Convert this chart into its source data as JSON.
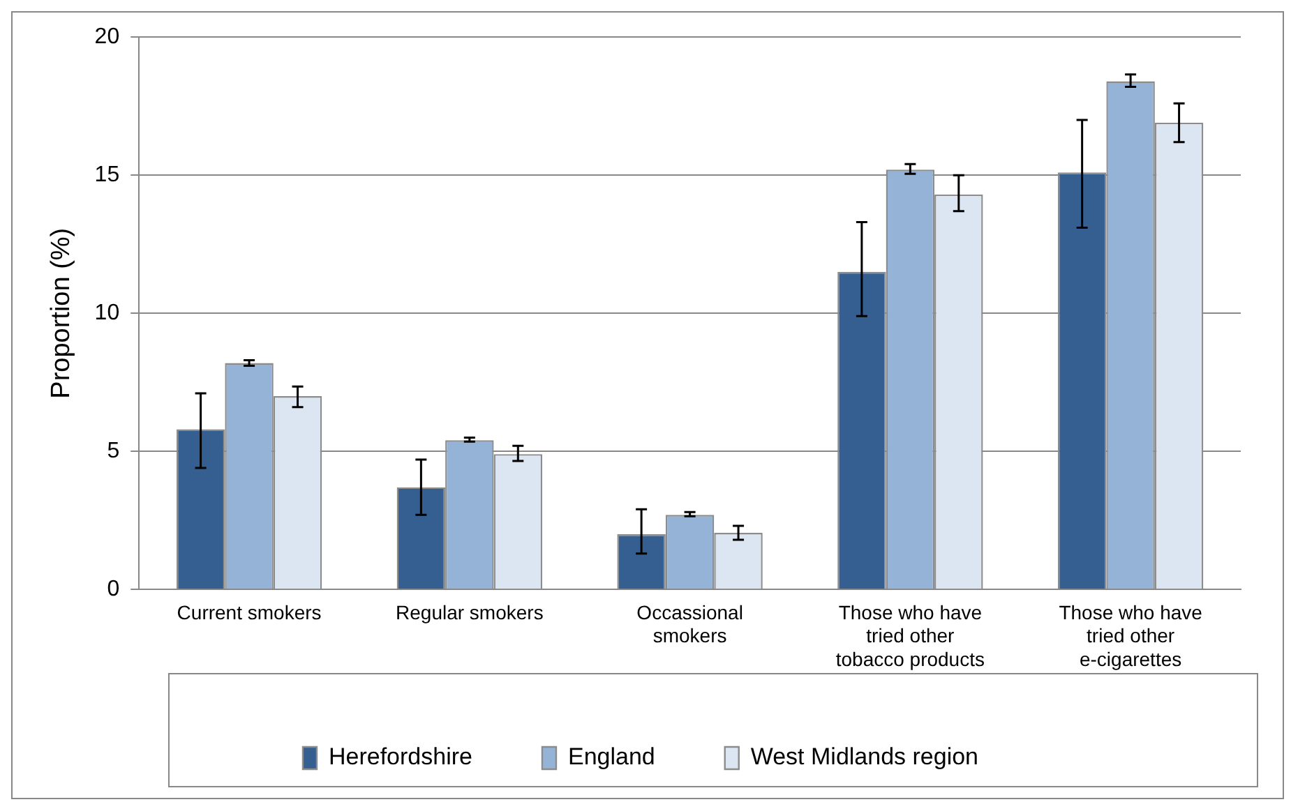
{
  "chart_data": {
    "type": "bar",
    "ylabel": "Proportion (%)",
    "categories": [
      "Current smokers",
      "Regular smokers",
      "Occassional smokers",
      "Those who have tried other tobacco products",
      "Those who have tried other e-cigarettes"
    ],
    "series": [
      {
        "name": "Herefordshire",
        "color": "#355f91",
        "values": [
          5.8,
          3.7,
          2.0,
          11.5,
          15.1
        ],
        "errors": [
          [
            4.4,
            7.1
          ],
          [
            2.7,
            4.7
          ],
          [
            1.3,
            2.9
          ],
          [
            9.9,
            13.3
          ],
          [
            13.1,
            17.0
          ]
        ]
      },
      {
        "name": "England",
        "color": "#95b3d7",
        "values": [
          8.2,
          5.4,
          2.7,
          15.2,
          18.4
        ],
        "errors": [
          [
            8.1,
            8.3
          ],
          [
            5.35,
            5.5
          ],
          [
            2.65,
            2.8
          ],
          [
            15.05,
            15.4
          ],
          [
            18.2,
            18.65
          ]
        ]
      },
      {
        "name": "West Midlands region",
        "color": "#dce6f2",
        "values": [
          7.0,
          4.9,
          2.05,
          14.3,
          16.9
        ],
        "errors": [
          [
            6.6,
            7.35
          ],
          [
            4.65,
            5.2
          ],
          [
            1.8,
            2.3
          ],
          [
            13.7,
            15.0
          ],
          [
            16.2,
            17.6
          ]
        ]
      }
    ],
    "ylim": [
      0,
      20
    ],
    "yticks": [
      0,
      5,
      10,
      15,
      20
    ],
    "grid": "y",
    "legend": "bottom"
  }
}
